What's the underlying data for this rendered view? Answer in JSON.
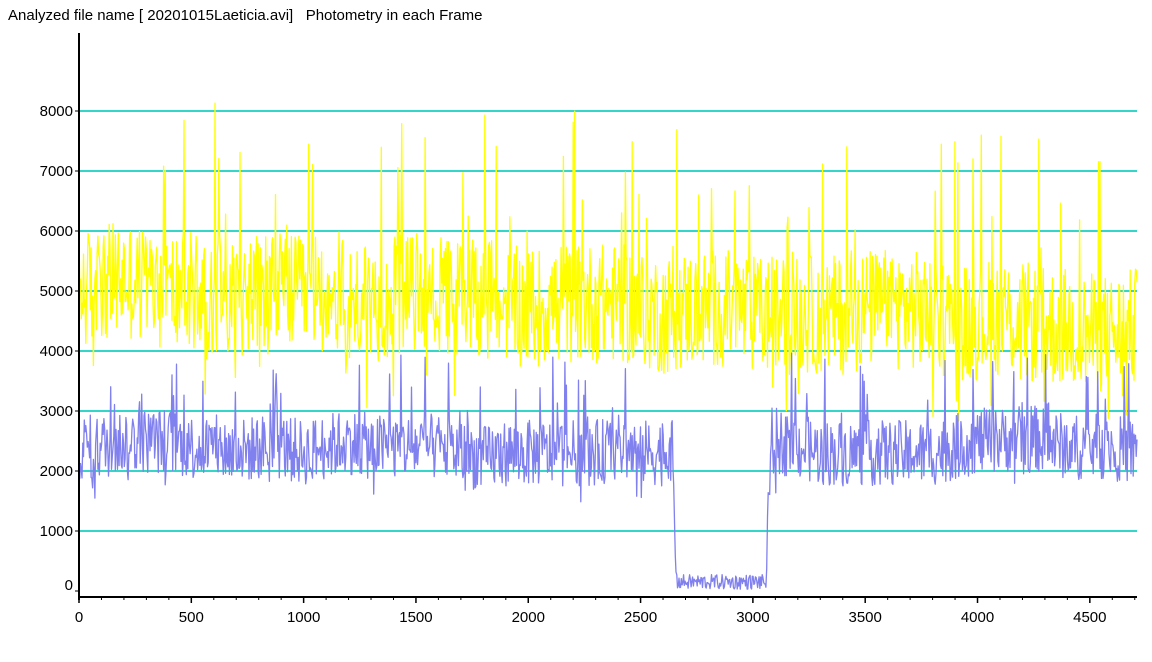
{
  "header": {
    "title": "Analyzed file name [ 20201015Laeticia.avi]   Photometry in each Frame"
  },
  "chart_data": {
    "type": "line",
    "title": "Analyzed file name [ 20201015Laeticia.avi]   Photometry in each Frame",
    "xlabel": "",
    "ylabel": "",
    "xlim": [
      0,
      4710
    ],
    "ylim": [
      -100,
      9300
    ],
    "grid": true,
    "legend": "none",
    "x_ticks": [
      0,
      500,
      1000,
      1500,
      2000,
      2500,
      3000,
      3500,
      4000,
      4500
    ],
    "y_ticks": [
      0,
      1000,
      2000,
      3000,
      4000,
      5000,
      6000,
      7000,
      8000
    ],
    "colors": {
      "grid": "#33d6c8",
      "series_primary": "#ffff00",
      "series_comparison": "#8080ee",
      "accent": "#ff66ee",
      "axis": "#000000"
    },
    "series": [
      {
        "color": "#ffff00",
        "x": [
          0,
          100,
          200,
          300,
          400,
          500,
          600,
          700,
          800,
          900,
          1000,
          1100,
          1200,
          1300,
          1400,
          1500,
          1600,
          1700,
          1800,
          1900,
          2000,
          2100,
          2200,
          2300,
          2400,
          2500,
          2600,
          2700,
          2800,
          2900,
          3000,
          3100,
          3200,
          3300,
          3400,
          3500,
          3600,
          3700,
          3800,
          3900,
          4000,
          4100,
          4200,
          4300,
          4400,
          4500,
          4600,
          4710
        ],
        "values": [
          5000,
          5100,
          5200,
          5100,
          5000,
          5000,
          5000,
          4900,
          5000,
          5000,
          4900,
          5000,
          4800,
          4800,
          4900,
          5000,
          4900,
          4900,
          4900,
          4800,
          4700,
          4800,
          4800,
          4800,
          4800,
          4700,
          4600,
          4700,
          4700,
          4700,
          4600,
          4600,
          4600,
          4600,
          4600,
          4700,
          4700,
          4700,
          4600,
          4500,
          4500,
          4600,
          4500,
          4400,
          4400,
          4300,
          4300,
          4400
        ]
      },
      {
        "color": "#8080ee",
        "x": [
          0,
          100,
          200,
          300,
          400,
          500,
          600,
          700,
          800,
          900,
          1000,
          1100,
          1200,
          1300,
          1400,
          1500,
          1600,
          1700,
          1800,
          1900,
          2000,
          2100,
          2200,
          2300,
          2400,
          2500,
          2600,
          2640,
          2660,
          2700,
          2800,
          2900,
          3000,
          3060,
          3080,
          3100,
          3200,
          3300,
          3400,
          3500,
          3600,
          3700,
          3800,
          3900,
          4000,
          4100,
          4200,
          4300,
          4400,
          4500,
          4600,
          4710
        ],
        "values": [
          2400,
          2400,
          2500,
          2500,
          2500,
          2400,
          2400,
          2300,
          2400,
          2400,
          2300,
          2400,
          2500,
          2400,
          2400,
          2400,
          2400,
          2300,
          2200,
          2300,
          2300,
          2300,
          2300,
          2300,
          2400,
          2300,
          2300,
          2400,
          150,
          150,
          150,
          150,
          150,
          150,
          2500,
          2500,
          2400,
          2300,
          2300,
          2300,
          2300,
          2300,
          2300,
          2400,
          2500,
          2500,
          2600,
          2500,
          2400,
          2400,
          2400,
          2300
        ]
      }
    ]
  }
}
